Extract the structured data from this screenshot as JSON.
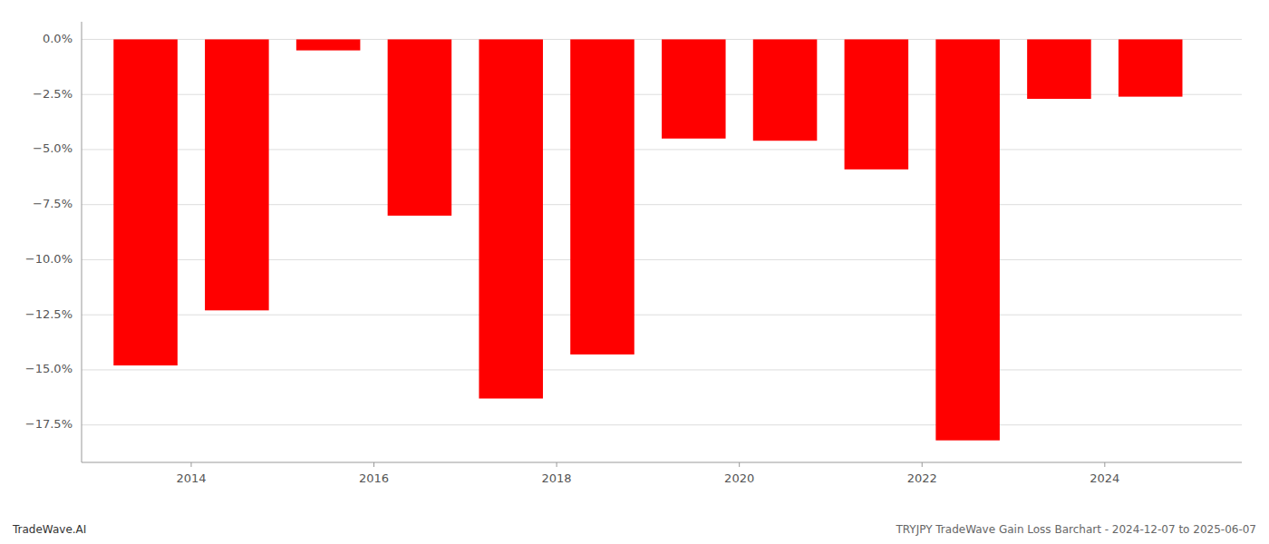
{
  "chart_data": {
    "type": "bar",
    "x": [
      2013.5,
      2014.5,
      2015.5,
      2016.5,
      2017.5,
      2018.5,
      2019.5,
      2020.5,
      2021.5,
      2022.5,
      2023.5,
      2024.5
    ],
    "values": [
      -14.8,
      -12.3,
      -0.5,
      -8.0,
      -16.3,
      -14.3,
      -4.5,
      -4.6,
      -5.9,
      -18.2,
      -2.7,
      -2.6
    ],
    "color": "#ff0000",
    "xlim": [
      2012.8,
      2025.5
    ],
    "xticks": [
      2014,
      2016,
      2018,
      2020,
      2022,
      2024
    ],
    "ylim": [
      -19.2,
      0.8
    ],
    "yticks": [
      {
        "value": 0.0,
        "label": "0.0%"
      },
      {
        "value": -2.5,
        "label": "−2.5%"
      },
      {
        "value": -5.0,
        "label": "−5.0%"
      },
      {
        "value": -7.5,
        "label": "−7.5%"
      },
      {
        "value": -10.0,
        "label": "−10.0%"
      },
      {
        "value": -12.5,
        "label": "−12.5%"
      },
      {
        "value": -15.0,
        "label": "−15.0%"
      },
      {
        "value": -17.5,
        "label": "−17.5%"
      }
    ],
    "grid": true,
    "annotations": [
      "TradeWave.AI",
      "TRYJPY TradeWave Gain Loss Barchart - 2024-12-07 to 2025-06-07"
    ]
  }
}
